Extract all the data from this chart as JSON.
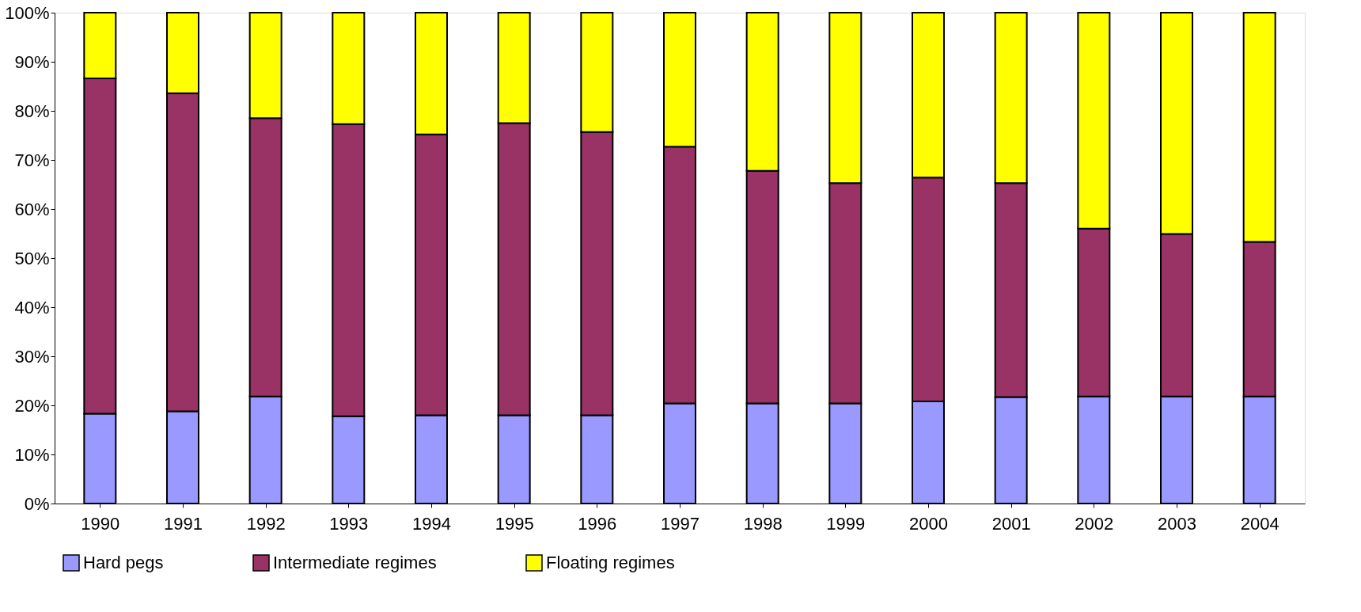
{
  "chart_data": {
    "type": "bar",
    "stacked": true,
    "categories": [
      "1990",
      "1991",
      "1992",
      "1993",
      "1994",
      "1995",
      "1996",
      "1997",
      "1998",
      "1999",
      "2000",
      "2001",
      "2002",
      "2003",
      "2004"
    ],
    "series": [
      {
        "name": "Hard pegs",
        "color": "#9999ff",
        "values": [
          18.3,
          18.8,
          21.8,
          17.8,
          18.0,
          18.0,
          18.0,
          20.4,
          20.4,
          20.4,
          20.8,
          21.7,
          21.8,
          21.8,
          21.8
        ]
      },
      {
        "name": "Intermediate regimes",
        "color": "#993366",
        "values": [
          68.3,
          64.8,
          56.7,
          59.5,
          57.2,
          59.5,
          57.7,
          52.3,
          47.4,
          44.9,
          45.6,
          43.6,
          34.2,
          33.1,
          31.5
        ]
      },
      {
        "name": "Floating regimes",
        "color": "#ffff00",
        "values": [
          13.4,
          16.4,
          21.5,
          22.7,
          24.8,
          22.5,
          24.3,
          27.3,
          32.2,
          34.7,
          33.6,
          34.7,
          44.0,
          45.1,
          46.7
        ]
      }
    ],
    "ylim": [
      0,
      100
    ],
    "yticks": [
      {
        "value": 0,
        "label": "0%"
      },
      {
        "value": 10,
        "label": "10%"
      },
      {
        "value": 20,
        "label": "20%"
      },
      {
        "value": 30,
        "label": "30%"
      },
      {
        "value": 40,
        "label": "40%"
      },
      {
        "value": 50,
        "label": "50%"
      },
      {
        "value": 60,
        "label": "60%"
      },
      {
        "value": 70,
        "label": "70%"
      },
      {
        "value": 80,
        "label": "80%"
      },
      {
        "value": 90,
        "label": "90%"
      },
      {
        "value": 100,
        "label": "100%"
      }
    ],
    "grid": false,
    "legend": "bottom"
  }
}
